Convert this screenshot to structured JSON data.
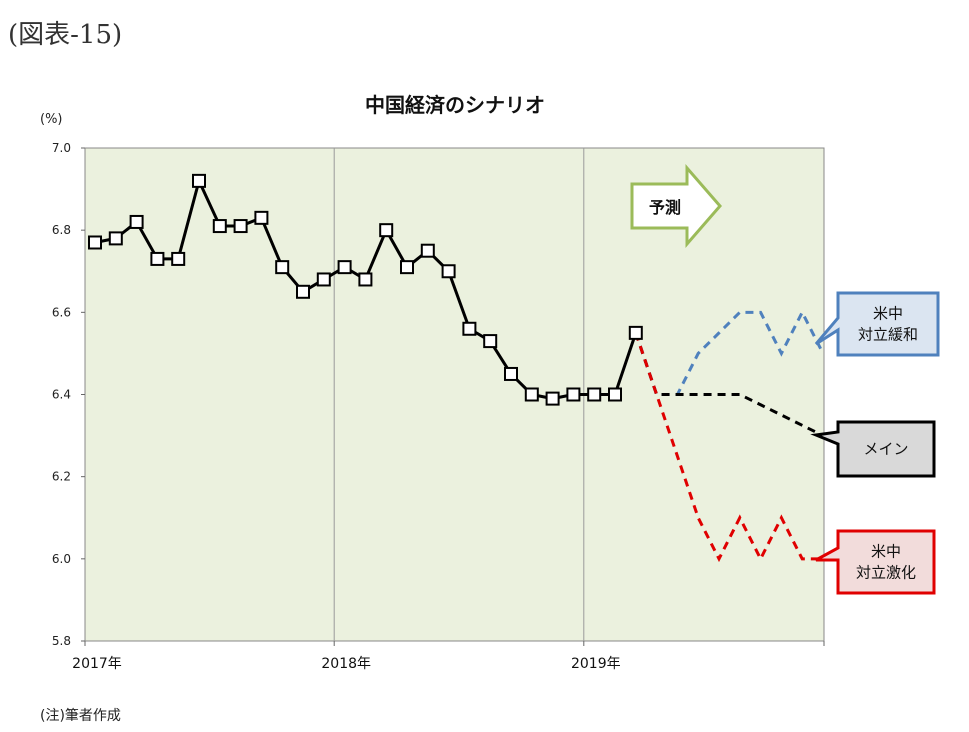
{
  "figure_label": "(図表-15)",
  "note": "(注)筆者作成",
  "chart_data": {
    "type": "line",
    "title": "中国経済のシナリオ",
    "ylabel": "(%)",
    "ylim": [
      5.8,
      7.0
    ],
    "yticks": [
      "5.8",
      "6.0",
      "6.2",
      "6.4",
      "6.6",
      "6.8",
      "7.0"
    ],
    "xticks": [
      "2017年",
      "2018年",
      "2019年"
    ],
    "x_domain": [
      "2017-01",
      "2019-12"
    ],
    "forecast_label": "予測",
    "plot_background": "#ebf1de",
    "grid": "vertical at year boundaries",
    "series": [
      {
        "name": "",
        "style": "solid",
        "color": "#000000",
        "markers": "square",
        "x": [
          "2017-01",
          "2017-02",
          "2017-03",
          "2017-04",
          "2017-05",
          "2017-06",
          "2017-07",
          "2017-08",
          "2017-09",
          "2017-10",
          "2017-11",
          "2017-12",
          "2018-01",
          "2018-02",
          "2018-03",
          "2018-04",
          "2018-05",
          "2018-06",
          "2018-07",
          "2018-08",
          "2018-09",
          "2018-10",
          "2018-11",
          "2018-12",
          "2019-01",
          "2019-02",
          "2019-03"
        ],
        "values": [
          6.77,
          6.78,
          6.82,
          6.73,
          6.73,
          6.92,
          6.81,
          6.81,
          6.83,
          6.71,
          6.65,
          6.68,
          6.71,
          6.68,
          6.8,
          6.71,
          6.75,
          6.7,
          6.56,
          6.53,
          6.45,
          6.4,
          6.39,
          6.4,
          6.4,
          6.4,
          6.55
        ]
      },
      {
        "name": "米中対立緩和",
        "style": "dashed",
        "color": "#4f81bd",
        "x": [
          "2019-03",
          "2019-04",
          "2019-05",
          "2019-06",
          "2019-07",
          "2019-08",
          "2019-09",
          "2019-10",
          "2019-11",
          "2019-12"
        ],
        "values": [
          6.55,
          6.4,
          6.4,
          6.5,
          6.55,
          6.6,
          6.6,
          6.5,
          6.6,
          6.5
        ]
      },
      {
        "name": "メイン",
        "style": "dashed",
        "color": "#000000",
        "x": [
          "2019-03",
          "2019-04",
          "2019-05",
          "2019-06",
          "2019-07",
          "2019-08",
          "2019-09",
          "2019-10",
          "2019-11",
          "2019-12"
        ],
        "values": [
          6.55,
          6.4,
          6.4,
          6.4,
          6.4,
          6.4,
          6.375,
          6.35,
          6.325,
          6.3
        ]
      },
      {
        "name": "米中対立激化",
        "style": "dashed",
        "color": "#e00000",
        "x": [
          "2019-03",
          "2019-04",
          "2019-05",
          "2019-06",
          "2019-07",
          "2019-08",
          "2019-09",
          "2019-10",
          "2019-11",
          "2019-12"
        ],
        "values": [
          6.55,
          6.4,
          6.25,
          6.1,
          6.0,
          6.1,
          6.0,
          6.1,
          6.0,
          6.0
        ]
      }
    ],
    "callouts": [
      {
        "series": "米中対立緩和",
        "lines": [
          "米中",
          "対立緩和"
        ],
        "fill": "#dbe5f1",
        "stroke": "#4f81bd"
      },
      {
        "series": "メイン",
        "lines": [
          "メイン"
        ],
        "fill": "#d9d9d9",
        "stroke": "#000000"
      },
      {
        "series": "米中対立激化",
        "lines": [
          "米中",
          "対立激化"
        ],
        "fill": "#f2dcdb",
        "stroke": "#e00000"
      }
    ]
  }
}
